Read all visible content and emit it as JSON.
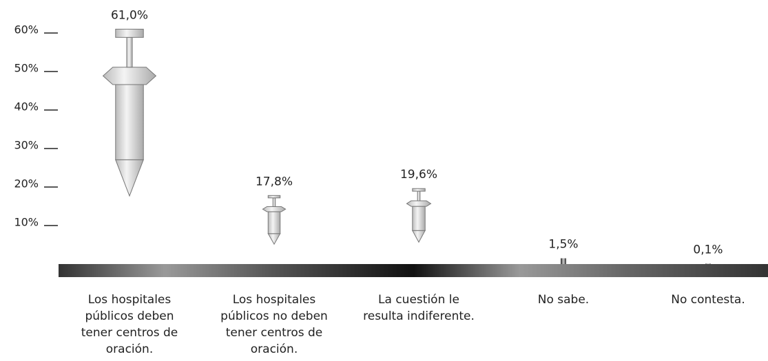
{
  "chart_data": {
    "type": "bar",
    "categories": [
      "Los hospitales públicos deben tener centros de oración.",
      "Los hospitales públicos no deben tener centros de oración.",
      "La cuestión le resulta indiferente.",
      "No sabe.",
      "No contesta."
    ],
    "values": [
      61.0,
      17.8,
      19.6,
      1.5,
      0.1
    ],
    "value_labels": [
      "61,0%",
      "17,8%",
      "19,6%",
      "1,5%",
      "0,1%"
    ],
    "color": "#d9d9d9",
    "ylim": [
      0,
      60
    ],
    "yticks": [
      {
        "value": 10,
        "label": "10%"
      },
      {
        "value": 20,
        "label": "20%"
      },
      {
        "value": 30,
        "label": "30%"
      },
      {
        "value": 40,
        "label": "40%"
      },
      {
        "value": 50,
        "label": "50%"
      },
      {
        "value": 60,
        "label": "60%"
      }
    ],
    "grid": false
  }
}
